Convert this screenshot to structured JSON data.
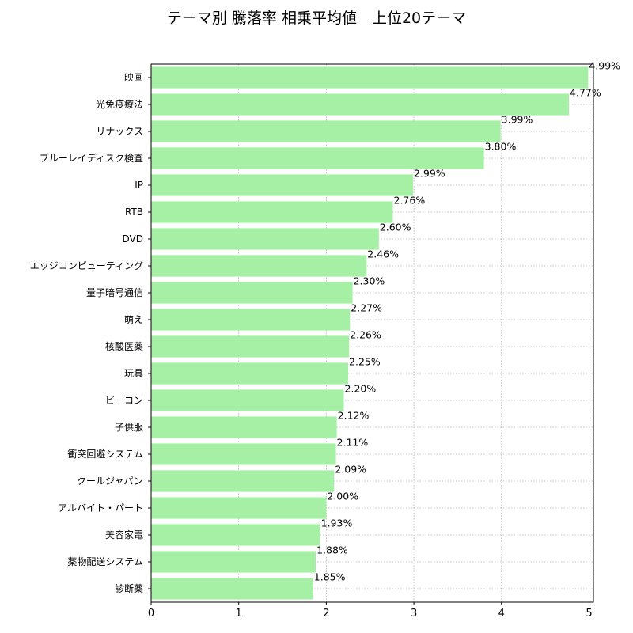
{
  "title": "テーマ別 騰落率 相乗平均値　上位20テーマ",
  "colors": {
    "bar": "#a6f0a6",
    "grid": "#b0b0b0",
    "axis": "#000000"
  },
  "chart_data": {
    "type": "bar",
    "orientation": "horizontal",
    "title": "テーマ別 騰落率 相乗平均値　上位20テーマ",
    "xlabel": "",
    "ylabel": "",
    "xlim": [
      0,
      5.05
    ],
    "xticks": [
      "0",
      "1",
      "2",
      "3",
      "4",
      "5"
    ],
    "grid": true,
    "categories": [
      "映画",
      "光免疫療法",
      "リナックス",
      "ブルーレイディスク検査",
      "IP",
      "RTB",
      "DVD",
      "エッジコンピューティング",
      "量子暗号通信",
      "萌え",
      "核酸医薬",
      "玩具",
      "ビーコン",
      "子供服",
      "衝突回避システム",
      "クールジャパン",
      "アルバイト・パート",
      "美容家電",
      "薬物配送システム",
      "診断薬"
    ],
    "values": [
      4.99,
      4.77,
      3.99,
      3.8,
      2.99,
      2.76,
      2.6,
      2.46,
      2.3,
      2.27,
      2.26,
      2.25,
      2.2,
      2.12,
      2.11,
      2.09,
      2.0,
      1.93,
      1.88,
      1.85
    ],
    "value_labels": [
      "4.99%",
      "4.77%",
      "3.99%",
      "3.80%",
      "2.99%",
      "2.76%",
      "2.60%",
      "2.46%",
      "2.30%",
      "2.27%",
      "2.26%",
      "2.25%",
      "2.20%",
      "2.12%",
      "2.11%",
      "2.09%",
      "2.00%",
      "1.93%",
      "1.88%",
      "1.85%"
    ]
  }
}
